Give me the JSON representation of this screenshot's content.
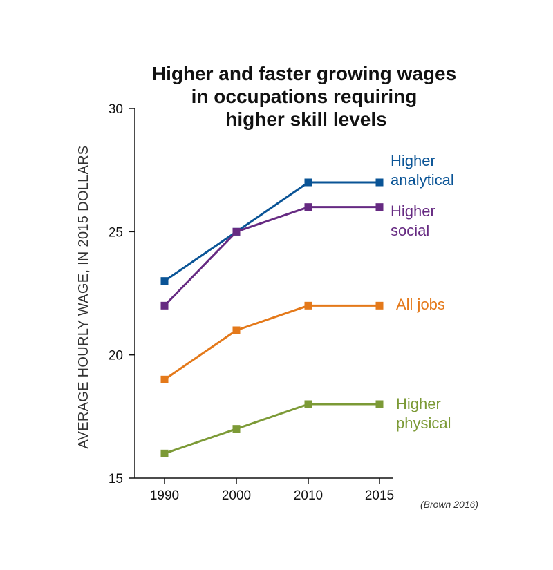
{
  "chart_data": {
    "type": "line",
    "title_lines": [
      "Higher and faster growing wages",
      "in occupations requiring",
      "higher skill levels"
    ],
    "ylabel": "AVERAGE HOURLY WAGE, IN 2015 DOLLARS",
    "xlabel": "",
    "x": [
      1990,
      2000,
      2010,
      2015
    ],
    "x_tick_labels": [
      "1990",
      "2000",
      "2010",
      "2015"
    ],
    "ylim": [
      15,
      30
    ],
    "y_ticks": [
      15,
      20,
      25,
      30
    ],
    "y_tick_labels": [
      "15",
      "20",
      "25",
      "30"
    ],
    "grid": false,
    "legend": "inline labels to the right of each line",
    "series": [
      {
        "name": "Higher analytical",
        "label_lines": [
          "Higher",
          "analytical"
        ],
        "color": "#0a5496",
        "values": [
          23,
          25,
          27,
          27
        ]
      },
      {
        "name": "Higher social",
        "label_lines": [
          "Higher",
          "social"
        ],
        "color": "#662a82",
        "values": [
          22,
          25,
          26,
          26
        ]
      },
      {
        "name": "All jobs",
        "label_lines": [
          "All jobs"
        ],
        "color": "#e4791a",
        "values": [
          19,
          21,
          22,
          22
        ]
      },
      {
        "name": "Higher physical",
        "label_lines": [
          "Higher",
          "physical"
        ],
        "color": "#7c9a36",
        "values": [
          16,
          17,
          18,
          18
        ]
      }
    ],
    "source": "(Brown 2016)"
  }
}
